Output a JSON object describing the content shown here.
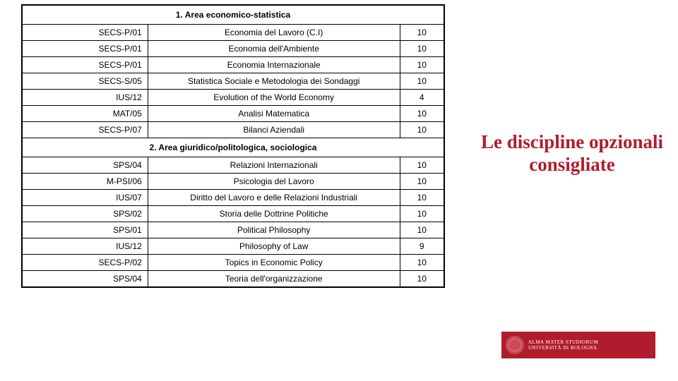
{
  "sidebarTitle": "Le discipline opzionali consigliate",
  "logo": {
    "line1": "ALMA MATER STUDIORUM",
    "line2": "UNIVERSITÀ DI BOLOGNA"
  },
  "table": {
    "section1": {
      "title": "1. Area economico-statistica"
    },
    "rows1": [
      {
        "code": "SECS-P/01",
        "name": "Economia del Lavoro (C.I)",
        "credits": "10"
      },
      {
        "code": "SECS-P/01",
        "name": "Economia dell'Ambiente",
        "credits": "10"
      },
      {
        "code": "SECS-P/01",
        "name": "Economia Internazionale",
        "credits": "10"
      },
      {
        "code": "SECS-S/05",
        "name": "Statistica Sociale e Metodologia dei Sondaggi",
        "credits": "10"
      },
      {
        "code": "IUS/12",
        "name": "Evolution of the World Economy",
        "credits": "4"
      },
      {
        "code": "MAT/05",
        "name": "Analisi Matematica",
        "credits": "10"
      },
      {
        "code": "SECS-P/07",
        "name": "Bilanci Aziendali",
        "credits": "10"
      }
    ],
    "section2": {
      "title": "2. Area giuridico/politologica, sociologica"
    },
    "rows2": [
      {
        "code": "SPS/04",
        "name": "Relazioni Internazionali",
        "credits": "10"
      },
      {
        "code": "M-PSI/06",
        "name": "Psicologia del Lavoro",
        "credits": "10"
      },
      {
        "code": "IUS/07",
        "name": "Diritto del Lavoro e delle Relazioni Industriali",
        "credits": "10"
      },
      {
        "code": "SPS/02",
        "name": "Storia delle Dottrine Politiche",
        "credits": "10"
      },
      {
        "code": "SPS/01",
        "name": "Political Philosophy",
        "credits": "10"
      },
      {
        "code": "IUS/12",
        "name": "Philosophy of Law",
        "credits": "9"
      },
      {
        "code": "SECS-P/02",
        "name": "Topics in Economic Policy",
        "credits": "10"
      },
      {
        "code": "SPS/04",
        "name": "Teoria dell'organizzazione",
        "credits": "10"
      }
    ]
  },
  "styling": {
    "accent_color": "#b01c2e",
    "border_color": "#000000",
    "background": "#ffffff",
    "body_fontsize": 12,
    "title_fontsize": 27,
    "title_font": "Georgia, serif",
    "body_font": "Verdana, sans-serif"
  }
}
